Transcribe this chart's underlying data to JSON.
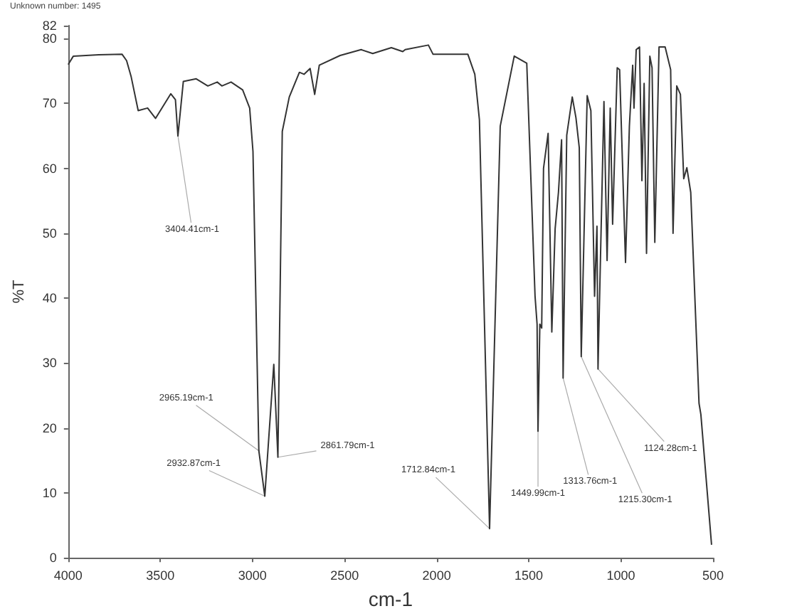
{
  "chart_data": {
    "type": "line",
    "title": "Unknown number: 1495",
    "xlabel": "cm-1",
    "ylabel": "%T",
    "x": [
      4000,
      3972,
      3834,
      3708,
      3683,
      3658,
      3620,
      3569,
      3526,
      3443,
      3418,
      3404.41,
      3375,
      3305,
      3242,
      3191,
      3166,
      3116,
      3053,
      3015,
      2997,
      2965.19,
      2932.87,
      2884,
      2861.79,
      2838,
      2800,
      2745,
      2720,
      2687,
      2662,
      2637,
      2524,
      2410,
      2347,
      2246,
      2184,
      2171,
      2045,
      2020,
      1831,
      1793,
      1768,
      1712.84,
      1655,
      1579,
      1511,
      1466,
      1455,
      1449.99,
      1440,
      1430,
      1420,
      1395,
      1375,
      1357,
      1339,
      1322,
      1313.76,
      1294,
      1264,
      1244,
      1226,
      1215.3,
      1183,
      1163,
      1143,
      1130,
      1124.28,
      1092,
      1075,
      1058,
      1045,
      1020,
      1007,
      975,
      954,
      936,
      929,
      917,
      899,
      886,
      874,
      861,
      843,
      831,
      816,
      793,
      760,
      730,
      717,
      697,
      677,
      659,
      642,
      621,
      576,
      566,
      508
    ],
    "series": [
      {
        "color": "#333333",
        "values": [
          76.0,
          77.3,
          77.5,
          77.6,
          76.6,
          74.1,
          68.9,
          69.3,
          67.7,
          71.5,
          70.6,
          65.0,
          73.4,
          73.8,
          72.7,
          73.3,
          72.7,
          73.3,
          72.1,
          69.3,
          62.6,
          16.5,
          9.5,
          29.8,
          15.5,
          65.7,
          71.0,
          74.8,
          74.5,
          75.4,
          71.4,
          75.9,
          77.4,
          78.3,
          77.7,
          78.6,
          78.0,
          78.3,
          79.0,
          77.6,
          77.6,
          74.5,
          67.5,
          4.5,
          66.5,
          77.3,
          76.2,
          40.3,
          36.0,
          19.5,
          36.0,
          35.4,
          60.0,
          65.4,
          34.8,
          50.7,
          56.3,
          64.4,
          27.7,
          65.1,
          71.0,
          67.8,
          63.2,
          31.0,
          71.2,
          68.9,
          40.3,
          51.1,
          29.1,
          70.3,
          45.8,
          69.3,
          51.4,
          75.5,
          75.2,
          45.5,
          66.5,
          75.9,
          69.3,
          78.3,
          78.7,
          58.1,
          73.1,
          46.9,
          77.3,
          75.5,
          48.6,
          78.7,
          78.7,
          75.2,
          50.0,
          72.7,
          71.4,
          58.4,
          60.1,
          56.3,
          23.8,
          22.1,
          2.0
        ]
      }
    ],
    "xlim": [
      4000,
      500
    ],
    "xticks": [
      4000,
      3500,
      3000,
      2500,
      2000,
      1500,
      1000,
      500
    ],
    "ylim": [
      0,
      82
    ],
    "yticks": [
      0,
      10,
      20,
      30,
      40,
      50,
      60,
      70,
      80,
      82
    ],
    "annotations": [
      {
        "text": "3404.41cm-1",
        "x": 3404.41,
        "y": 65.0
      },
      {
        "text": "2965.19cm-1",
        "x": 2965.19,
        "y": 16.5
      },
      {
        "text": "2932.87cm-1",
        "x": 2932.87,
        "y": 9.5
      },
      {
        "text": "2861.79cm-1",
        "x": 2861.79,
        "y": 15.5
      },
      {
        "text": "1712.84cm-1",
        "x": 1712.84,
        "y": 4.5
      },
      {
        "text": "1449.99cm-1",
        "x": 1449.99,
        "y": 19.5
      },
      {
        "text": "1313.76cm-1",
        "x": 1313.76,
        "y": 27.7
      },
      {
        "text": "1215.30cm-1",
        "x": 1215.3,
        "y": 31.0
      },
      {
        "text": "1124.28cm-1",
        "x": 1124.28,
        "y": 29.1
      }
    ],
    "grid": false,
    "marker": "none",
    "line_style": "solid"
  }
}
